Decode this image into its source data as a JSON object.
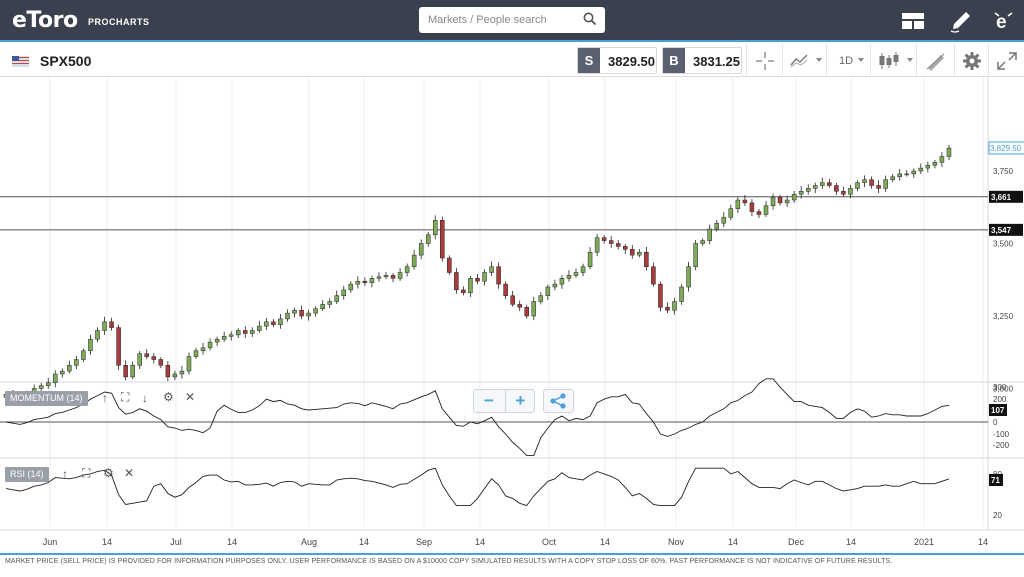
{
  "header": {
    "logo_text": "eToro",
    "logo_sub": "PROCHARTS",
    "search_placeholder": "Markets / People search",
    "icons": [
      "search-icon",
      "layout-icon",
      "pencil-icon",
      "etoro-e-icon"
    ]
  },
  "toolbar": {
    "symbol": "SPX500",
    "sell_tag": "S",
    "sell_price": "3829.50",
    "buy_tag": "B",
    "buy_price": "3831.25",
    "timeframe": "1D",
    "icons": [
      "crosshair-icon",
      "line-chart-icon",
      "candlestick-icon",
      "draw-icon",
      "settings-icon",
      "fullscreen-icon"
    ]
  },
  "chart_data": {
    "type": "candlestick",
    "symbol": "SPX500",
    "interval": "1D",
    "price_axis_ticks": [
      "3,750",
      "3,500",
      "3,250",
      "3,000"
    ],
    "current_price_label": "3,829.50",
    "horizontal_lines": [
      {
        "label": "3,661",
        "value": 3661
      },
      {
        "label": "3,547",
        "value": 3547
      }
    ],
    "x_axis_ticks": [
      "Jun",
      "14",
      "Jul",
      "14",
      "Aug",
      "14",
      "Sep",
      "14",
      "Oct",
      "14",
      "Nov",
      "14",
      "Dec",
      "14",
      "2021",
      "14"
    ],
    "close_series": [
      2980,
      2970,
      2960,
      2975,
      3000,
      3010,
      3020,
      3050,
      3060,
      3080,
      3100,
      3130,
      3170,
      3200,
      3230,
      3210,
      3080,
      3040,
      3080,
      3120,
      3110,
      3100,
      3080,
      3040,
      3050,
      3060,
      3110,
      3130,
      3140,
      3160,
      3170,
      3180,
      3185,
      3200,
      3190,
      3200,
      3215,
      3230,
      3220,
      3240,
      3260,
      3270,
      3250,
      3260,
      3275,
      3290,
      3300,
      3320,
      3340,
      3360,
      3370,
      3365,
      3380,
      3385,
      3390,
      3380,
      3400,
      3420,
      3460,
      3500,
      3530,
      3580,
      3450,
      3400,
      3340,
      3330,
      3380,
      3370,
      3400,
      3420,
      3360,
      3320,
      3290,
      3280,
      3250,
      3300,
      3320,
      3350,
      3360,
      3380,
      3390,
      3400,
      3420,
      3470,
      3520,
      3510,
      3500,
      3490,
      3480,
      3460,
      3470,
      3420,
      3360,
      3280,
      3270,
      3300,
      3350,
      3420,
      3500,
      3510,
      3550,
      3570,
      3590,
      3620,
      3650,
      3640,
      3610,
      3600,
      3630,
      3660,
      3640,
      3650,
      3670,
      3680,
      3690,
      3700,
      3710,
      3700,
      3680,
      3670,
      3690,
      3710,
      3720,
      3700,
      3690,
      3720,
      3730,
      3740,
      3740,
      3750,
      3760,
      3770,
      3780,
      3800,
      3829
    ],
    "indicators": [
      {
        "name": "MOMENTUM (14)",
        "value_label": "107",
        "ticks": [
          "300",
          "200",
          "100",
          "0",
          "-100",
          "-200"
        ]
      },
      {
        "name": "RSI (14)",
        "value_label": "71",
        "ticks": [
          "80",
          "20"
        ]
      }
    ]
  },
  "footer": {
    "disclaimer": "MARKET PRICE (SELL PRICE) IS PROVIDED FOR INFORMATION PURPOSES ONLY. USER PERFORMANCE IS BASED ON A $10000 COPY SIMULATED RESULTS WITH A COPY STOP LOSS OF 60%. PAST PERFORMANCE IS NOT INDICATIVE OF FUTURE RESULTS."
  },
  "colors": {
    "topbar": "#3a404d",
    "accent": "#4a9fdd",
    "candle_up": "#7dab5a",
    "candle_down": "#a83c3c",
    "price_label": "#4a9fdd"
  }
}
